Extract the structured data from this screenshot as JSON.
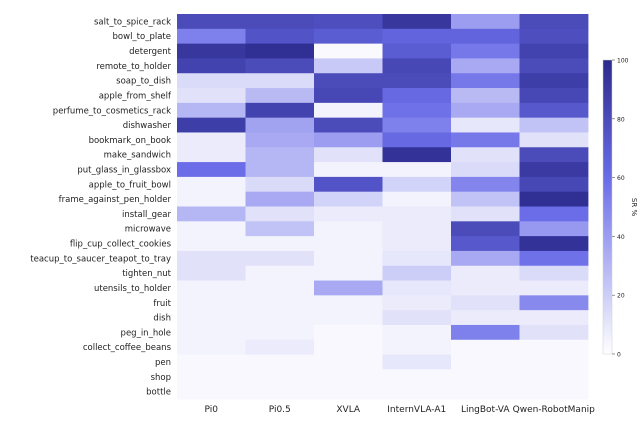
{
  "chart_data": {
    "type": "heatmap",
    "title": "",
    "xlabel": "",
    "ylabel": "",
    "colorbar": {
      "label": "SR %",
      "min": 0,
      "max": 100,
      "ticks": [
        "0",
        "20",
        "40",
        "60",
        "80",
        "100"
      ],
      "tick_values": [
        0,
        20,
        40,
        60,
        80,
        100
      ],
      "color_low": "#ffffff",
      "color_mid": "#6a6ce8",
      "color_high": "#2b2a8c"
    },
    "columns": [
      "Pi0",
      "Pi0.5",
      "XVLA",
      "InternVLA-A1",
      "LingBot-VA",
      "Qwen-RobotManip"
    ],
    "rows": [
      "salt_to_spice_rack",
      "bowl_to_plate",
      "detergent",
      "remote_to_holder",
      "soap_to_dish",
      "apple_from_shelf",
      "perfume_to_cosmetics_rack",
      "dishwasher",
      "bookmark_on_book",
      "make_sandwich",
      "put_glass_in_glassbox",
      "apple_to_fruit_bowl",
      "frame_against_pen_holder",
      "install_gear",
      "microwave",
      "flip_cup_collect_cookies",
      "teacup_to_saucer_teapot_to_tray",
      "tighten_nut",
      "utensils_to_holder",
      "fruit",
      "dish",
      "peg_in_hole",
      "collect_coffee_beans",
      "pen",
      "shop",
      "bottle"
    ],
    "values": [
      [
        80,
        80,
        78,
        92,
        40,
        80
      ],
      [
        52,
        75,
        70,
        65,
        65,
        78
      ],
      [
        92,
        97,
        2,
        70,
        55,
        85
      ],
      [
        85,
        80,
        22,
        82,
        35,
        80
      ],
      [
        15,
        15,
        80,
        80,
        55,
        88
      ],
      [
        12,
        28,
        82,
        62,
        28,
        82
      ],
      [
        30,
        85,
        5,
        58,
        35,
        72
      ],
      [
        88,
        38,
        80,
        52,
        10,
        25
      ],
      [
        8,
        35,
        40,
        62,
        55,
        12
      ],
      [
        8,
        30,
        12,
        95,
        12,
        80
      ],
      [
        60,
        30,
        5,
        5,
        15,
        90
      ],
      [
        5,
        15,
        75,
        18,
        50,
        82
      ],
      [
        5,
        35,
        18,
        5,
        25,
        97
      ],
      [
        30,
        12,
        8,
        8,
        12,
        60
      ],
      [
        5,
        25,
        5,
        8,
        80,
        42
      ],
      [
        5,
        5,
        5,
        8,
        72,
        95
      ],
      [
        12,
        12,
        5,
        10,
        35,
        58
      ],
      [
        12,
        5,
        5,
        20,
        8,
        15
      ],
      [
        5,
        5,
        35,
        10,
        8,
        8
      ],
      [
        5,
        5,
        5,
        8,
        12,
        48
      ],
      [
        5,
        5,
        5,
        12,
        8,
        8
      ],
      [
        5,
        5,
        3,
        5,
        52,
        12
      ],
      [
        5,
        8,
        3,
        5,
        3,
        3
      ],
      [
        3,
        3,
        3,
        10,
        3,
        3
      ],
      [
        3,
        3,
        3,
        3,
        3,
        3
      ],
      [
        3,
        3,
        3,
        3,
        3,
        3
      ]
    ]
  }
}
